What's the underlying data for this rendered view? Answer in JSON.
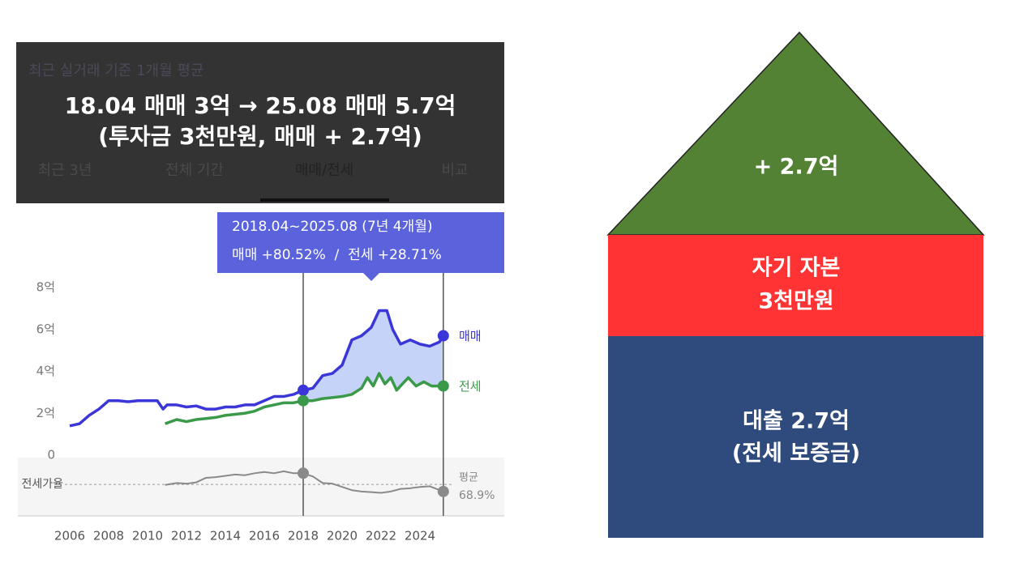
{
  "overlay": {
    "background_texts": [
      "최근 실거래 기준 1개월 평균"
    ],
    "tabs": [
      "최근 3년",
      "전체 기간",
      "매매/전세",
      "비교"
    ],
    "lines": [
      "18.04 매매 3억 → 25.08 매매 5.7억",
      "(투자금 3천만원, 매매 + 2.7억)"
    ]
  },
  "chart_data": {
    "type": "line",
    "tooltip": [
      "2018.04~2025.08 (7년 4개월)",
      "매매 +80.52%  /  전세 +28.71%"
    ],
    "xlim": [
      2004,
      2028
    ],
    "xticks": [
      2006,
      2008,
      2010,
      2012,
      2014,
      2016,
      2018,
      2020,
      2022,
      2024
    ],
    "ylim": [
      0,
      8
    ],
    "yticks": [
      0,
      {
        "value": 2,
        "label": "2억"
      },
      {
        "value": 4,
        "label": "4억"
      },
      {
        "value": 6,
        "label": "6억"
      },
      {
        "value": 8,
        "label": "8억"
      }
    ],
    "y2lim": [
      23,
      110
    ],
    "y2_label": "전세가율",
    "average": {
      "label": "평균",
      "value": 68.9,
      "value_label": "68.9%"
    },
    "highlight_x": [
      2018,
      2025.2
    ],
    "series": [
      {
        "name": "매매",
        "color": "#3b36d8",
        "x": [
          2006,
          2006.5,
          2007,
          2007.5,
          2008,
          2008.5,
          2009,
          2009.5,
          2010,
          2010.5,
          2010.8,
          2011,
          2011.5,
          2012,
          2012.5,
          2013,
          2013.5,
          2014,
          2014.5,
          2015,
          2015.5,
          2016,
          2016.5,
          2017,
          2017.5,
          2018,
          2018.5,
          2019,
          2019.5,
          2020,
          2020.5,
          2021,
          2021.5,
          2021.9,
          2022.3,
          2022.6,
          2023,
          2023.5,
          2024,
          2024.5,
          2025,
          2025.2
        ],
        "values": [
          1.4,
          1.5,
          1.9,
          2.2,
          2.6,
          2.6,
          2.55,
          2.6,
          2.6,
          2.6,
          2.2,
          2.4,
          2.4,
          2.3,
          2.35,
          2.2,
          2.2,
          2.3,
          2.3,
          2.4,
          2.4,
          2.6,
          2.8,
          2.8,
          2.9,
          3.1,
          3.2,
          3.8,
          3.9,
          4.3,
          5.5,
          5.7,
          6.1,
          6.9,
          6.9,
          6.0,
          5.3,
          5.5,
          5.3,
          5.2,
          5.4,
          5.7
        ]
      },
      {
        "name": "전세",
        "color": "#3a9a4a",
        "x": [
          2010.9,
          2011.5,
          2012,
          2012.5,
          2013,
          2013.5,
          2014,
          2014.5,
          2015,
          2015.5,
          2016,
          2016.5,
          2017,
          2017.5,
          2018,
          2018.5,
          2019,
          2019.5,
          2020,
          2020.5,
          2021,
          2021.3,
          2021.6,
          2021.9,
          2022.2,
          2022.5,
          2022.8,
          2023,
          2023.4,
          2023.8,
          2024.2,
          2024.6,
          2025.2
        ],
        "values": [
          1.5,
          1.7,
          1.6,
          1.7,
          1.75,
          1.8,
          1.9,
          1.95,
          2.0,
          2.1,
          2.3,
          2.4,
          2.5,
          2.5,
          2.6,
          2.6,
          2.7,
          2.75,
          2.8,
          2.9,
          3.2,
          3.7,
          3.3,
          3.9,
          3.4,
          3.7,
          3.1,
          3.3,
          3.7,
          3.3,
          3.5,
          3.3,
          3.3
        ]
      },
      {
        "color": "#8a8a8a",
        "axis": "y2",
        "x": [
          2010.9,
          2011.5,
          2012,
          2012.5,
          2013,
          2013.5,
          2014,
          2014.5,
          2015,
          2015.5,
          2016,
          2016.5,
          2017,
          2017.5,
          2018,
          2018.5,
          2019,
          2019.5,
          2020,
          2020.5,
          2021,
          2021.5,
          2022,
          2022.5,
          2023,
          2023.5,
          2024,
          2024.5,
          2025.2
        ],
        "values": [
          68,
          71,
          70,
          72,
          79,
          80,
          82,
          84,
          83,
          86,
          88,
          86,
          89,
          86,
          86,
          81,
          71,
          70,
          65,
          60,
          58,
          57,
          56,
          58,
          62,
          63,
          65,
          66,
          58
        ]
      }
    ]
  },
  "diagram": {
    "roof": "+ 2.7억",
    "middle": [
      "자기 자본",
      "3천만원"
    ],
    "base": [
      "대출 2.7억",
      "(전세 보증금)"
    ]
  }
}
